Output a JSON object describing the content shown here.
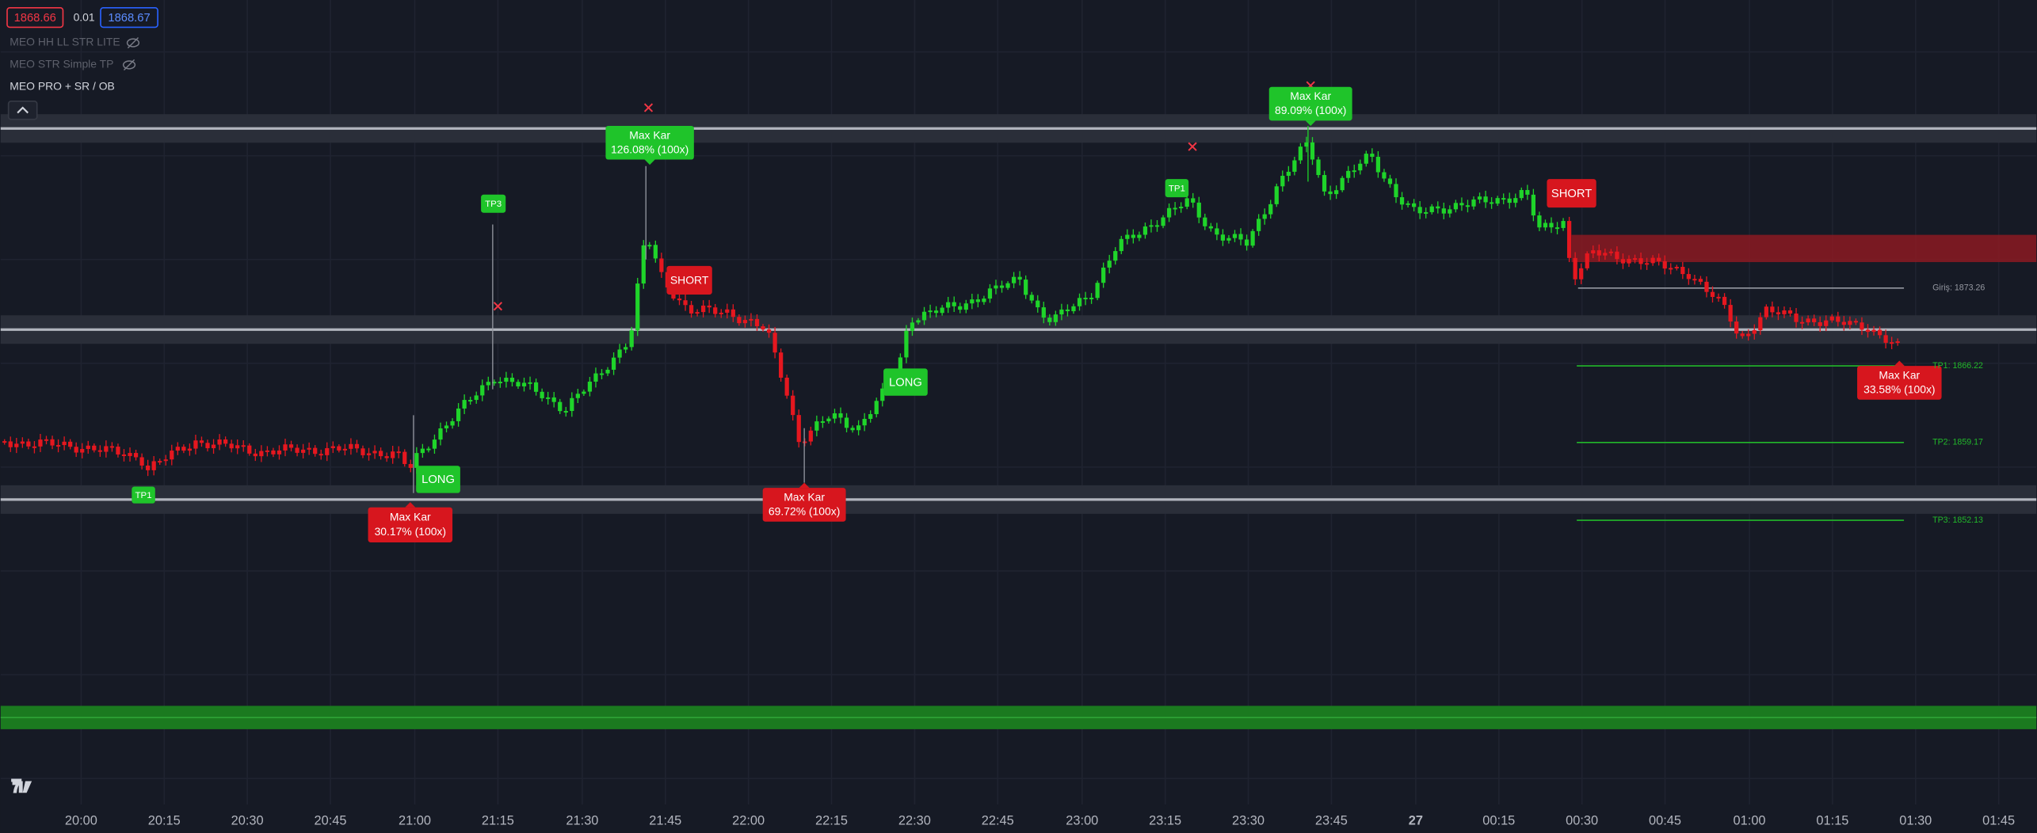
{
  "price_badges": {
    "bid": "1868.66",
    "spread": "0.01",
    "ask": "1868.67"
  },
  "indicators": [
    "MEO HH LL STR LITE",
    "MEO STR Simple TP",
    "MEO PRO + SR / OB"
  ],
  "signal_labels": [
    {
      "title": "Max Kar",
      "text": "126.08% (100x)"
    },
    {
      "title": "Max Kar",
      "text": "89.09% (100x)"
    },
    {
      "title": "Max Kar",
      "text": "30.17% (100x)"
    },
    {
      "title": "Max Kar",
      "text": "69.72% (100x)"
    },
    {
      "title": "Max Kar",
      "text": "33.58% (100x)"
    }
  ],
  "tags": [
    "TP3",
    "TP1",
    "TP1",
    "LONG",
    "LONG",
    "SHORT",
    "SHORT"
  ],
  "levels": [
    "Giriş: 1873.26",
    "TP1: 1866.22",
    "TP2: 1859.17",
    "TP3: 1852.13"
  ],
  "time_axis": [
    "20:00",
    "20:15",
    "20:30",
    "20:45",
    "21:00",
    "21:15",
    "21:30",
    "21:45",
    "22:00",
    "22:15",
    "22:30",
    "22:45",
    "23:00",
    "23:15",
    "23:30",
    "23:45",
    "27",
    "00:15",
    "00:30",
    "00:45",
    "01:00",
    "01:15",
    "01:30",
    "01:45"
  ]
}
